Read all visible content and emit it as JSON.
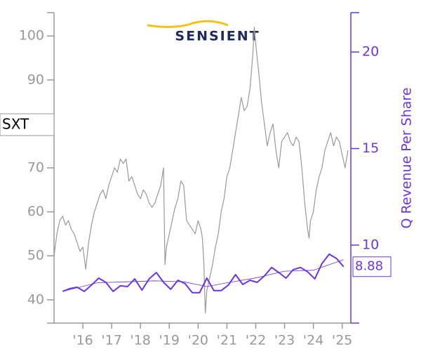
{
  "chart_data": {
    "type": "line",
    "ticker": "SXT",
    "logo": "SENSIENT",
    "y2label": "Q Revenue Per Share",
    "xlim": [
      2015.0,
      2025.3
    ],
    "xticks": [
      {
        "value": 2016,
        "label": "'16"
      },
      {
        "value": 2017,
        "label": "'17"
      },
      {
        "value": 2018,
        "label": "'18"
      },
      {
        "value": 2019,
        "label": "'19"
      },
      {
        "value": 2020,
        "label": "'20"
      },
      {
        "value": 2021,
        "label": "'21"
      },
      {
        "value": 2022,
        "label": "'22"
      },
      {
        "value": 2023,
        "label": "'23"
      },
      {
        "value": 2024,
        "label": "'24"
      },
      {
        "value": 2025,
        "label": "'25"
      }
    ],
    "ylim": [
      34.7,
      105.3
    ],
    "yticks": [
      40,
      50,
      60,
      70,
      90,
      100
    ],
    "y2lim": [
      5.96,
      22.04
    ],
    "y2ticks": [
      10,
      15,
      20
    ],
    "series": [
      {
        "color": "#999999",
        "axis": "y",
        "x": [
          2015.0,
          2015.1,
          2015.2,
          2015.3,
          2015.4,
          2015.5,
          2015.6,
          2015.7,
          2015.8,
          2015.9,
          2016.0,
          2016.1,
          2016.2,
          2016.3,
          2016.4,
          2016.5,
          2016.6,
          2016.7,
          2016.8,
          2016.9,
          2017.0,
          2017.1,
          2017.2,
          2017.3,
          2017.4,
          2017.5,
          2017.6,
          2017.7,
          2017.8,
          2017.9,
          2018.0,
          2018.1,
          2018.2,
          2018.3,
          2018.4,
          2018.5,
          2018.6,
          2018.7,
          2018.8,
          2018.85,
          2018.9,
          2019.0,
          2019.1,
          2019.2,
          2019.3,
          2019.4,
          2019.5,
          2019.6,
          2019.7,
          2019.8,
          2019.9,
          2020.0,
          2020.1,
          2020.15,
          2020.2,
          2020.25,
          2020.3,
          2020.4,
          2020.5,
          2020.6,
          2020.7,
          2020.8,
          2020.9,
          2021.0,
          2021.1,
          2021.2,
          2021.3,
          2021.4,
          2021.5,
          2021.6,
          2021.7,
          2021.8,
          2021.9,
          2021.95,
          2022.0,
          2022.1,
          2022.2,
          2022.3,
          2022.4,
          2022.5,
          2022.6,
          2022.7,
          2022.8,
          2022.9,
          2023.0,
          2023.1,
          2023.2,
          2023.3,
          2023.4,
          2023.5,
          2023.6,
          2023.7,
          2023.8,
          2023.85,
          2023.9,
          2024.0,
          2024.1,
          2024.2,
          2024.3,
          2024.4,
          2024.5,
          2024.6,
          2024.7,
          2024.8,
          2024.9,
          2025.0,
          2025.1,
          2025.2
        ],
        "values": [
          50,
          55,
          58,
          59,
          57,
          58,
          56,
          55,
          53,
          51,
          52,
          47,
          53,
          57,
          60,
          62,
          64,
          65,
          63,
          66,
          68,
          70,
          69,
          72,
          71,
          72,
          67,
          68,
          66,
          64,
          63,
          65,
          64,
          62,
          61,
          62,
          64,
          66,
          70,
          48,
          52,
          55,
          58,
          61,
          63,
          67,
          66,
          58,
          57,
          56,
          55,
          58,
          56,
          54,
          48,
          37,
          42,
          45,
          48,
          52,
          55,
          60,
          63,
          68,
          70,
          74,
          78,
          82,
          86,
          83,
          84,
          88,
          96,
          102,
          98,
          92,
          85,
          80,
          75,
          78,
          80,
          74,
          70,
          76,
          77,
          78,
          76,
          75,
          77,
          76,
          70,
          62,
          56,
          54,
          58,
          60,
          65,
          68,
          70,
          74,
          76,
          78,
          75,
          77,
          76,
          73,
          70,
          74
        ]
      },
      {
        "color": "#6a35e6",
        "axis": "y2",
        "x": [
          2015.3,
          2015.55,
          2015.8,
          2016.05,
          2016.3,
          2016.55,
          2016.8,
          2017.05,
          2017.3,
          2017.55,
          2017.8,
          2018.05,
          2018.3,
          2018.55,
          2018.8,
          2019.05,
          2019.3,
          2019.55,
          2019.8,
          2020.05,
          2020.3,
          2020.55,
          2020.8,
          2021.05,
          2021.3,
          2021.55,
          2021.8,
          2022.05,
          2022.3,
          2022.55,
          2022.8,
          2023.05,
          2023.3,
          2023.55,
          2023.8,
          2024.05,
          2024.3,
          2024.55,
          2024.8,
          2025.05
        ],
        "values": [
          7.6,
          7.75,
          7.82,
          7.6,
          7.93,
          8.29,
          8.07,
          7.6,
          7.89,
          7.85,
          8.25,
          7.67,
          8.25,
          8.58,
          8.07,
          7.71,
          8.18,
          8.0,
          7.53,
          7.53,
          8.29,
          7.64,
          7.64,
          7.93,
          8.47,
          7.96,
          8.18,
          8.07,
          8.4,
          8.84,
          8.58,
          8.29,
          8.73,
          8.84,
          8.62,
          8.25,
          9.05,
          9.53,
          9.31,
          8.88
        ]
      },
      {
        "color": "#6a35e6",
        "axis": "y2",
        "x": [
          2015.3,
          2016.5,
          2017.5,
          2018.5,
          2019.5,
          2020.3,
          2021.0,
          2022.0,
          2023.0,
          2024.0,
          2025.05
        ],
        "values": [
          7.6,
          8.05,
          8.1,
          8.15,
          8.1,
          7.85,
          8.05,
          8.3,
          8.65,
          8.7,
          9.24
        ]
      }
    ]
  }
}
